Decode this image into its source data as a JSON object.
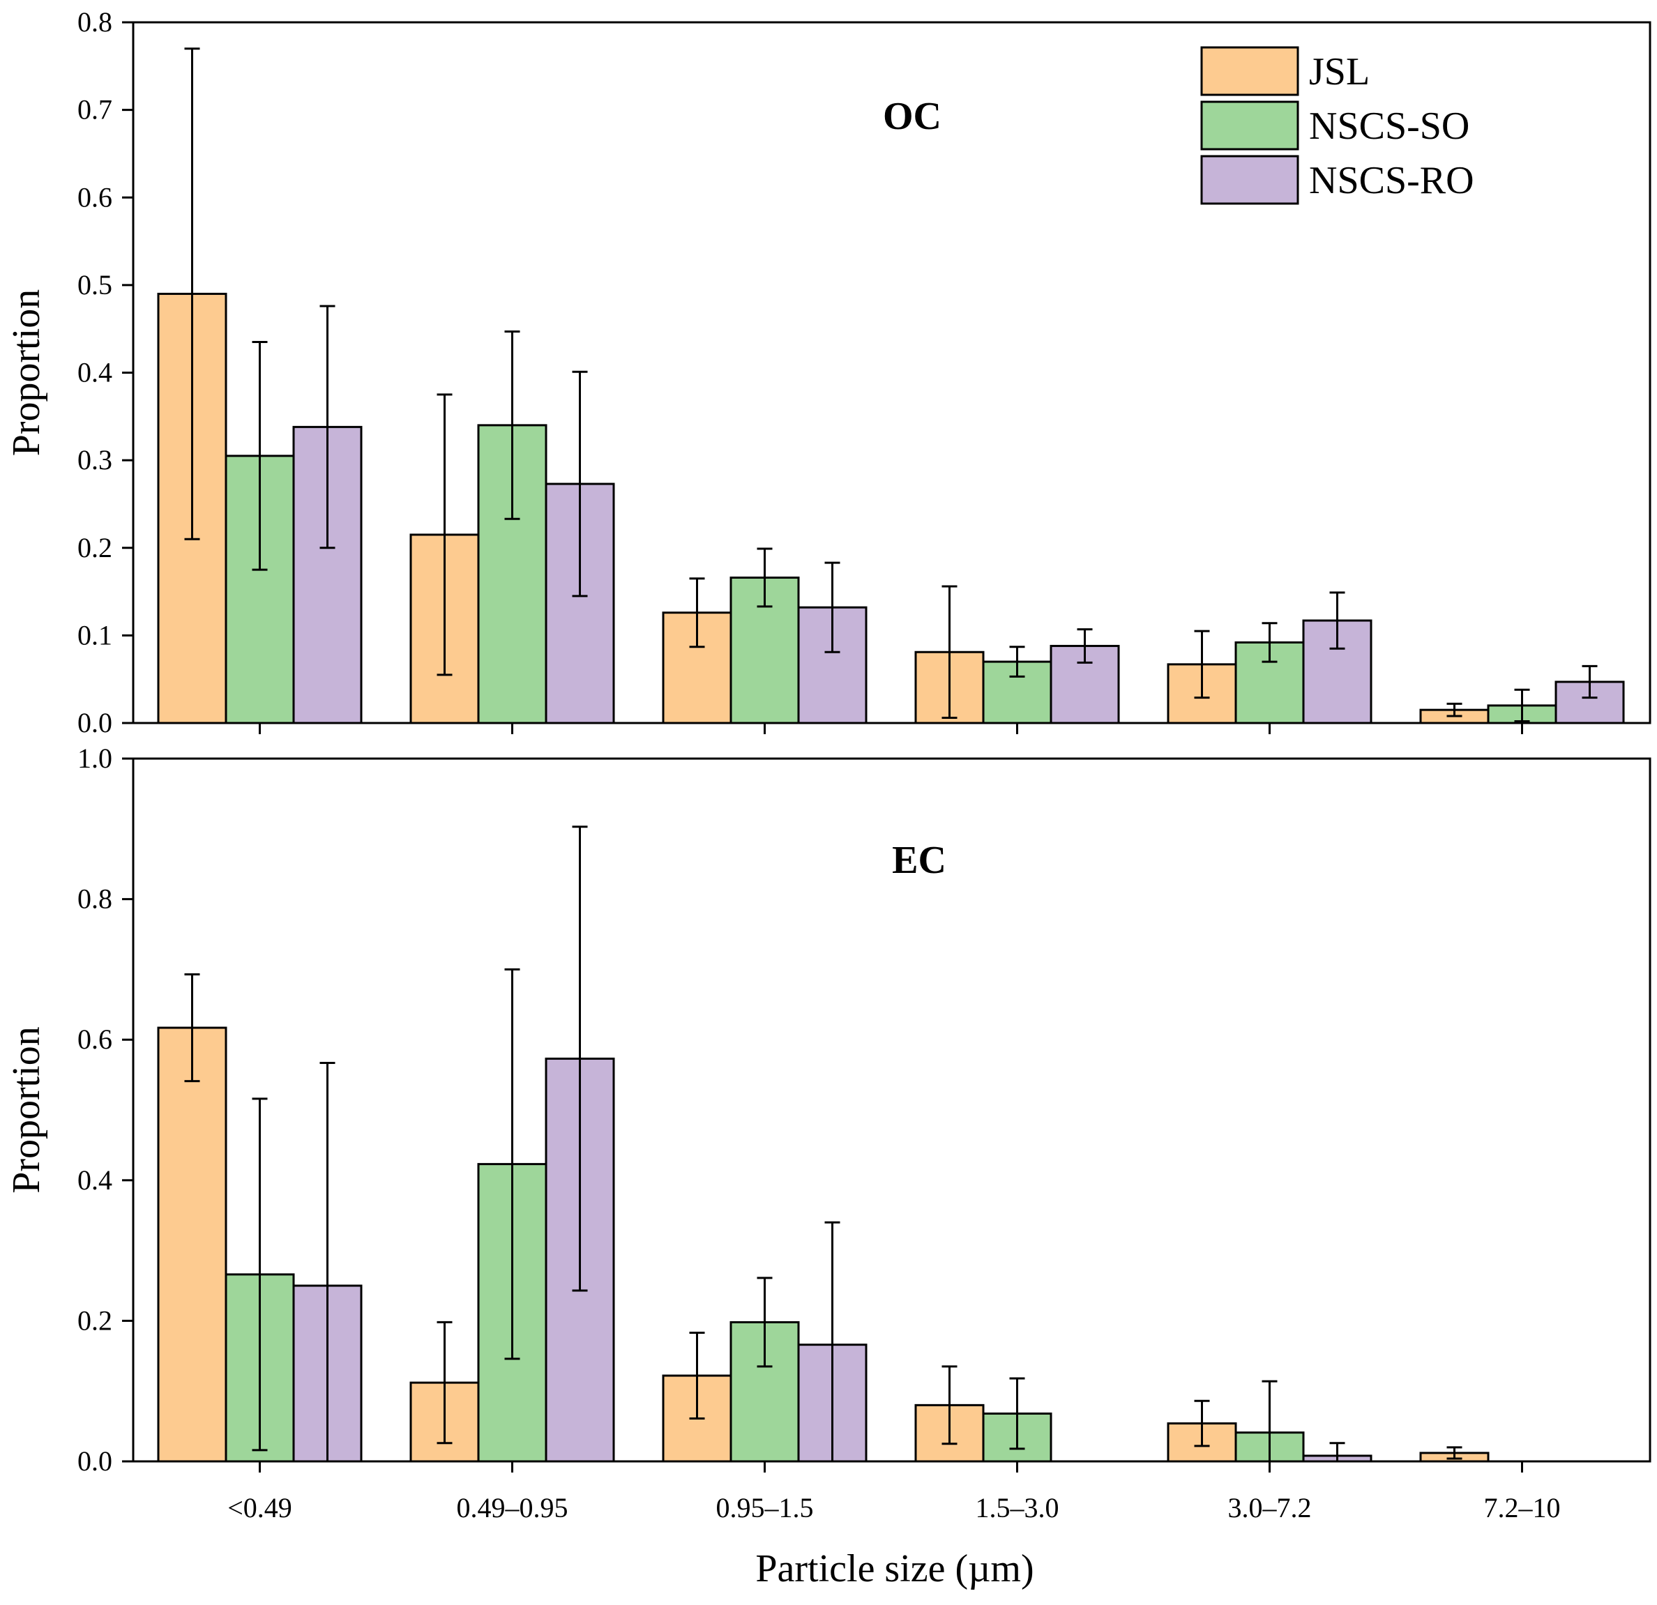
{
  "chart_data": {
    "type": "bar",
    "xlabel": "Particle size (µm)",
    "categories": [
      "<0.49",
      "0.49–0.95",
      "0.95–1.5",
      "1.5–3.0",
      "3.0–7.2",
      "7.2–10"
    ],
    "legend": {
      "position": "top-right",
      "entries": [
        {
          "name": "JSL",
          "color": "#FDCB90"
        },
        {
          "name": "NSCS-SO",
          "color": "#9ED69A"
        },
        {
          "name": "NSCS-RO",
          "color": "#C6B4D8"
        }
      ]
    },
    "panels": [
      {
        "title": "OC",
        "ylabel": "Proportion",
        "ylim": [
          0,
          0.8
        ],
        "yticks": [
          "0.0",
          "0.1",
          "0.2",
          "0.3",
          "0.4",
          "0.5",
          "0.6",
          "0.7",
          "0.8"
        ],
        "series": [
          {
            "name": "JSL",
            "values": [
              0.49,
              0.215,
              0.126,
              0.081,
              0.067,
              0.015
            ],
            "errors": [
              0.28,
              0.16,
              0.039,
              0.075,
              0.038,
              0.007
            ]
          },
          {
            "name": "NSCS-SO",
            "values": [
              0.305,
              0.34,
              0.166,
              0.07,
              0.092,
              0.02
            ],
            "errors": [
              0.13,
              0.107,
              0.033,
              0.017,
              0.022,
              0.018
            ]
          },
          {
            "name": "NSCS-RO",
            "values": [
              0.338,
              0.273,
              0.132,
              0.088,
              0.117,
              0.047
            ],
            "errors": [
              0.138,
              0.128,
              0.051,
              0.019,
              0.032,
              0.018
            ]
          }
        ]
      },
      {
        "title": "EC",
        "ylabel": "Proportion",
        "ylim": [
          0,
          1.0
        ],
        "yticks": [
          "0.0",
          "0.2",
          "0.4",
          "0.6",
          "0.8",
          "1.0"
        ],
        "series": [
          {
            "name": "JSL",
            "values": [
              0.617,
              0.112,
              0.122,
              0.08,
              0.054,
              0.012
            ],
            "errors": [
              0.076,
              0.086,
              0.061,
              0.055,
              0.032,
              0.008
            ]
          },
          {
            "name": "NSCS-SO",
            "values": [
              0.266,
              0.423,
              0.198,
              0.068,
              0.041,
              0.0
            ],
            "errors": [
              0.25,
              0.277,
              0.063,
              0.05,
              0.073,
              0.0
            ]
          },
          {
            "name": "NSCS-RO",
            "values": [
              0.25,
              0.573,
              0.166,
              0.0,
              0.008,
              0.0
            ],
            "errors": [
              0.317,
              0.33,
              0.174,
              0.0,
              0.018,
              0.0
            ]
          }
        ]
      }
    ]
  }
}
